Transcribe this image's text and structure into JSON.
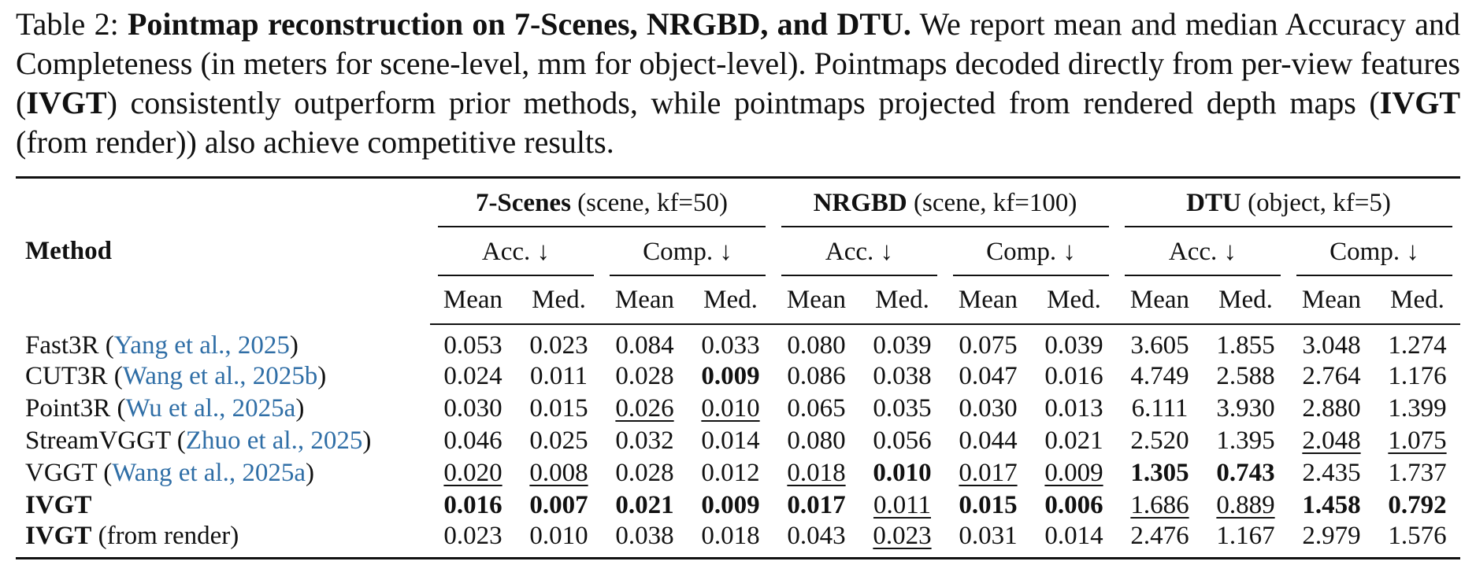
{
  "caption": [
    {
      "text": "Table 2: "
    },
    {
      "text": "Pointmap reconstruction on 7-Scenes, NRGBD, and DTU.",
      "bold": true
    },
    {
      "text": " We report mean and median Accuracy and Completeness (in meters for scene-level, mm for object-level). Pointmaps decoded directly from per-view features ("
    },
    {
      "text": "IVGT",
      "bold": true
    },
    {
      "text": ") consistently outperform prior methods, while pointmaps projected from rendered depth maps ("
    },
    {
      "text": "IVGT",
      "bold": true
    },
    {
      "text": " (from render)) also achieve competitive results."
    }
  ],
  "table": {
    "method_header": "Method",
    "groups": [
      {
        "name": "7-Scenes",
        "detail": " (scene, kf=50)",
        "metrics": [
          {
            "label": "Acc. ↓",
            "stats": [
              "Mean",
              "Med."
            ]
          },
          {
            "label": "Comp. ↓",
            "stats": [
              "Mean",
              "Med."
            ]
          }
        ]
      },
      {
        "name": "NRGBD",
        "detail": " (scene, kf=100)",
        "metrics": [
          {
            "label": "Acc. ↓",
            "stats": [
              "Mean",
              "Med."
            ]
          },
          {
            "label": "Comp. ↓",
            "stats": [
              "Mean",
              "Med."
            ]
          }
        ]
      },
      {
        "name": "DTU",
        "detail": " (object, kf=5)",
        "metrics": [
          {
            "label": "Acc. ↓",
            "stats": [
              "Mean",
              "Med."
            ]
          },
          {
            "label": "Comp. ↓",
            "stats": [
              "Mean",
              "Med."
            ]
          }
        ]
      }
    ],
    "rows": [
      {
        "method": [
          {
            "text": "Fast3R ("
          },
          {
            "text": "Yang et al., 2025",
            "cite": true
          },
          {
            "text": ")"
          }
        ],
        "cells": [
          "0.053",
          "0.023",
          "0.084",
          "0.033",
          "0.080",
          "0.039",
          "0.075",
          "0.039",
          "3.605",
          "1.855",
          "3.048",
          "1.274"
        ]
      },
      {
        "method": [
          {
            "text": "CUT3R ("
          },
          {
            "text": "Wang et al., 2025b",
            "cite": true
          },
          {
            "text": ")"
          }
        ],
        "cells": [
          "0.024",
          "0.011",
          "0.028",
          {
            "text": "0.009",
            "style": "bold"
          },
          "0.086",
          "0.038",
          "0.047",
          "0.016",
          "4.749",
          "2.588",
          "2.764",
          "1.176"
        ]
      },
      {
        "method": [
          {
            "text": "Point3R ("
          },
          {
            "text": "Wu et al., 2025a",
            "cite": true
          },
          {
            "text": ")"
          }
        ],
        "cells": [
          "0.030",
          "0.015",
          {
            "text": "0.026",
            "style": "underline"
          },
          {
            "text": "0.010",
            "style": "underline"
          },
          "0.065",
          "0.035",
          "0.030",
          "0.013",
          "6.111",
          "3.930",
          "2.880",
          "1.399"
        ]
      },
      {
        "method": [
          {
            "text": "StreamVGGT ("
          },
          {
            "text": "Zhuo et al., 2025",
            "cite": true
          },
          {
            "text": ")"
          }
        ],
        "cells": [
          "0.046",
          "0.025",
          "0.032",
          "0.014",
          "0.080",
          "0.056",
          "0.044",
          "0.021",
          "2.520",
          "1.395",
          {
            "text": "2.048",
            "style": "underline"
          },
          {
            "text": "1.075",
            "style": "underline"
          }
        ]
      },
      {
        "method": [
          {
            "text": "VGGT ("
          },
          {
            "text": "Wang et al., 2025a",
            "cite": true
          },
          {
            "text": ")"
          }
        ],
        "cells": [
          {
            "text": "0.020",
            "style": "underline"
          },
          {
            "text": "0.008",
            "style": "underline"
          },
          "0.028",
          "0.012",
          {
            "text": "0.018",
            "style": "underline"
          },
          {
            "text": "0.010",
            "style": "bold"
          },
          {
            "text": "0.017",
            "style": "underline"
          },
          {
            "text": "0.009",
            "style": "underline"
          },
          {
            "text": "1.305",
            "style": "bold"
          },
          {
            "text": "0.743",
            "style": "bold"
          },
          "2.435",
          "1.737"
        ]
      },
      {
        "method": [
          {
            "text": "IVGT",
            "bold": true
          }
        ],
        "cells": [
          {
            "text": "0.016",
            "style": "bold"
          },
          {
            "text": "0.007",
            "style": "bold"
          },
          {
            "text": "0.021",
            "style": "bold"
          },
          {
            "text": "0.009",
            "style": "bold"
          },
          {
            "text": "0.017",
            "style": "bold"
          },
          {
            "text": "0.011",
            "style": "underline"
          },
          {
            "text": "0.015",
            "style": "bold"
          },
          {
            "text": "0.006",
            "style": "bold"
          },
          {
            "text": "1.686",
            "style": "underline"
          },
          {
            "text": "0.889",
            "style": "underline"
          },
          {
            "text": "1.458",
            "style": "bold"
          },
          {
            "text": "0.792",
            "style": "bold"
          }
        ]
      },
      {
        "method": [
          {
            "text": "IVGT",
            "bold": true
          },
          {
            "text": " (from render)"
          }
        ],
        "cells": [
          "0.023",
          "0.010",
          "0.038",
          "0.018",
          "0.043",
          {
            "text": "0.023",
            "style": "underline"
          },
          "0.031",
          "0.014",
          "2.476",
          "1.167",
          "2.979",
          "1.576"
        ]
      }
    ]
  }
}
